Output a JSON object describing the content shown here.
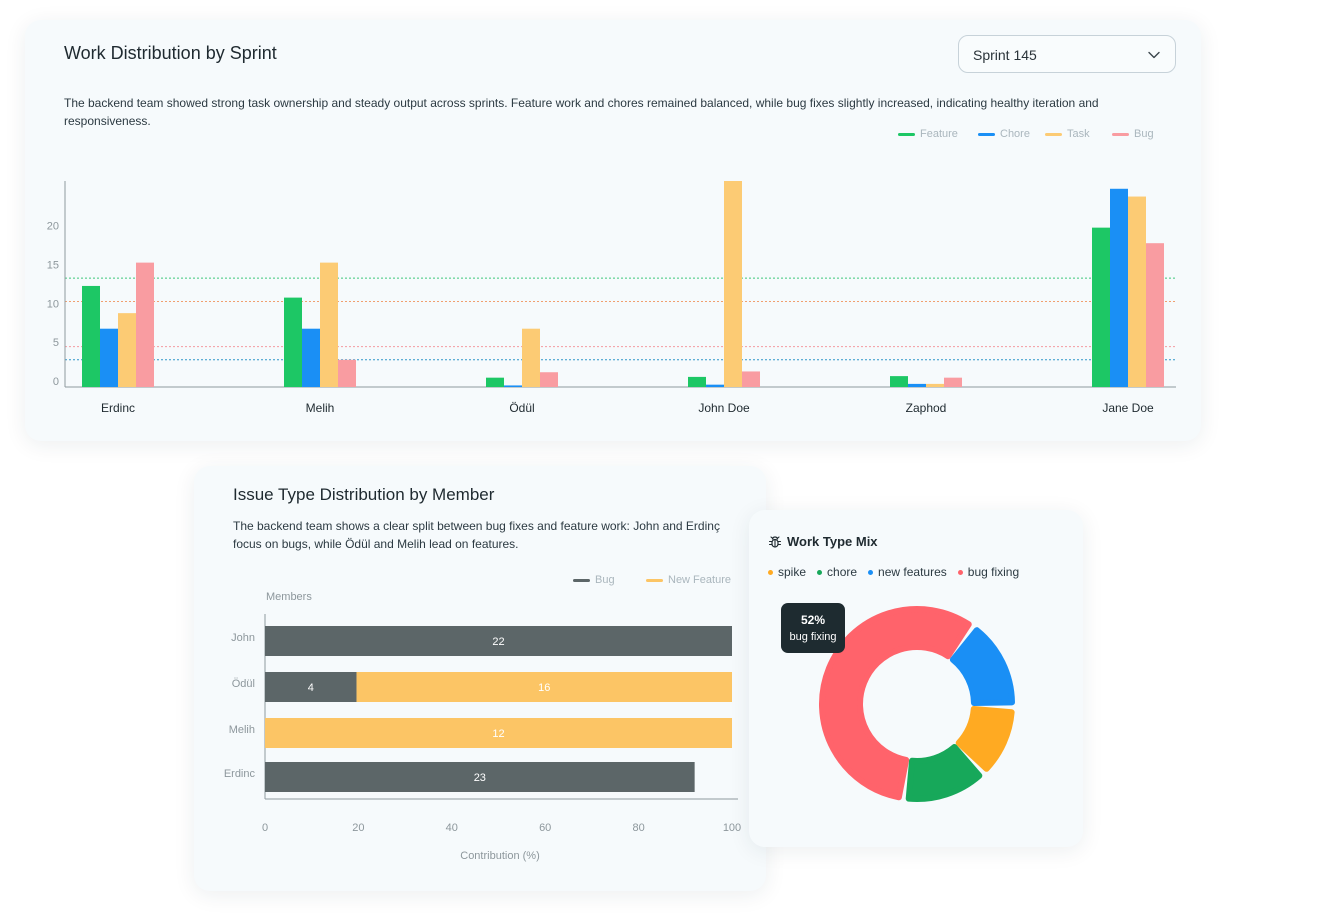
{
  "work_distribution": {
    "title": "Work Distribution by Sprint",
    "description": "The backend team showed strong task ownership and steady output across sprints. Feature work and chores remained balanced, while bug fixes slightly increased, indicating healthy iteration and responsiveness.",
    "sprint_select": {
      "value": "Sprint 145"
    }
  },
  "issue_distribution": {
    "title": "Issue Type Distribution by Member",
    "description": "The backend team shows a clear split between bug fixes and feature work: John and Erdinç focus on bugs, while Ödül and Melih lead on features."
  },
  "work_type_mix": {
    "title": "Work Type Mix",
    "tooltip": {
      "percent": "52%",
      "label": "bug fixing"
    }
  },
  "colors": {
    "feature": "#1dc765",
    "chore": "#1a8ff5",
    "task": "#fccb74",
    "bug": "#f99ca1",
    "issue_bug": "#5c6668",
    "new_feature": "#fcc565",
    "spike": "#ffaa22",
    "chore_mix": "#17a85a",
    "new_features": "#1a8ff5",
    "bug_fixing": "#ff636b"
  },
  "chart_data": [
    {
      "type": "bar",
      "title": "Work Distribution by Sprint",
      "categories": [
        "Erdinc",
        "Melih",
        "Ödül",
        "John Doe",
        "Zaphod",
        "Jane Doe"
      ],
      "series": [
        {
          "name": "Feature",
          "values": [
            13,
            11.5,
            1.2,
            1.3,
            1.4,
            20.5
          ]
        },
        {
          "name": "Chore",
          "values": [
            7.5,
            7.5,
            0.2,
            0.3,
            0.4,
            25.5
          ]
        },
        {
          "name": "Task",
          "values": [
            9.5,
            16,
            7.5,
            26.5,
            0.4,
            24.5
          ]
        },
        {
          "name": "Bug",
          "values": [
            16,
            3.5,
            1.9,
            2,
            1.2,
            18.5
          ]
        }
      ],
      "reference_lines": [
        14,
        11,
        5.2,
        3.5
      ],
      "yticks": [
        0,
        5,
        10,
        15,
        20
      ],
      "ylim": [
        0,
        26.5
      ],
      "legend": "top-right"
    },
    {
      "type": "bar",
      "orientation": "horizontal",
      "stacked": true,
      "title": "Issue Type Distribution by Member",
      "categories": [
        "John",
        "Ödül",
        "Melih",
        "Erdinc"
      ],
      "series": [
        {
          "name": "Bug",
          "values": [
            100,
            19.6,
            0,
            92
          ]
        },
        {
          "name": "New Feature",
          "values": [
            0,
            80.4,
            100,
            0
          ]
        }
      ],
      "data_labels": {
        "Bug": [
          "22",
          "4",
          "",
          "23"
        ],
        "New Feature": [
          "",
          "16",
          "12",
          ""
        ]
      },
      "xticks": [
        0,
        20,
        40,
        60,
        80,
        100
      ],
      "xlim": [
        0,
        100
      ],
      "xlabel": "Contribution (%)",
      "ylabel": "Members",
      "legend": "top-right"
    },
    {
      "type": "pie",
      "subtype": "donut",
      "title": "Work Type Mix",
      "slices": [
        {
          "label": "bug fixing",
          "value": 52
        },
        {
          "label": "new features",
          "value": 14
        },
        {
          "label": "spike",
          "value": 11
        },
        {
          "label": "chore",
          "value": 13
        }
      ],
      "legend_order": [
        "spike",
        "chore",
        "new features",
        "bug fixing"
      ],
      "legend": "top"
    }
  ]
}
